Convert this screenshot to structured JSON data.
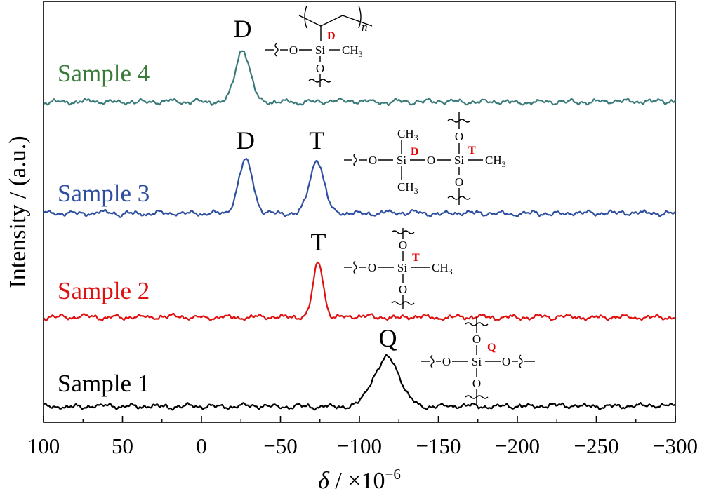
{
  "chart_data": {
    "type": "line",
    "xlabel_symbol": "δ",
    "xlabel_unit": " / ×10",
    "xlabel_exp": "−6",
    "ylabel": "Intensity / (a.u.)",
    "xlim": [
      100,
      -300
    ],
    "x_reversed": true,
    "x_ticks": [
      100,
      50,
      0,
      -50,
      -100,
      -150,
      -200,
      -250,
      -300
    ],
    "x_tick_labels": [
      "100",
      "50",
      "0",
      "−50",
      "−100",
      "−150",
      "−200",
      "−250",
      "−300"
    ],
    "y_ticks_shown": false,
    "grid": false,
    "series": [
      {
        "name": "Sample 4",
        "color": "#3a7a7a",
        "label_color": "#3a7a3a",
        "peaks": [
          {
            "x": -26,
            "height": 1.0,
            "width": 4.5
          }
        ],
        "peak_labels": [
          {
            "text": "D",
            "x": -26
          }
        ]
      },
      {
        "name": "Sample 3",
        "color": "#2e4fa0",
        "label_color": "#2e4fa0",
        "peaks": [
          {
            "x": -28,
            "height": 1.0,
            "width": 4.5
          },
          {
            "x": -73,
            "height": 1.0,
            "width": 4.5
          }
        ],
        "peak_labels": [
          {
            "text": "D",
            "x": -28
          },
          {
            "text": "T",
            "x": -73
          }
        ]
      },
      {
        "name": "Sample 2",
        "color": "#e01010",
        "label_color": "#e01010",
        "peaks": [
          {
            "x": -74,
            "height": 1.0,
            "width": 3.2
          }
        ],
        "peak_labels": [
          {
            "text": "T",
            "x": -74
          }
        ]
      },
      {
        "name": "Sample 1",
        "color": "#000000",
        "label_color": "#000000",
        "peaks": [
          {
            "x": -118,
            "height": 1.0,
            "width": 7.5
          },
          {
            "x": -106,
            "height": 0.15,
            "width": 4
          }
        ],
        "peak_labels": [
          {
            "text": "Q",
            "x": -118
          }
        ]
      }
    ]
  },
  "structures": {
    "s4": {
      "o": "O",
      "si": "Si",
      "ch3": "CH",
      "sub3": "3",
      "site": "D",
      "n": "n"
    },
    "s3": {
      "o": "O",
      "si": "Si",
      "ch3": "CH",
      "sub3": "3",
      "site_d": "D",
      "site_t": "T"
    },
    "s2": {
      "o": "O",
      "si": "Si",
      "ch3": "CH",
      "sub3": "3",
      "site": "T"
    },
    "s1": {
      "o": "O",
      "si": "Si",
      "site": "Q"
    }
  }
}
